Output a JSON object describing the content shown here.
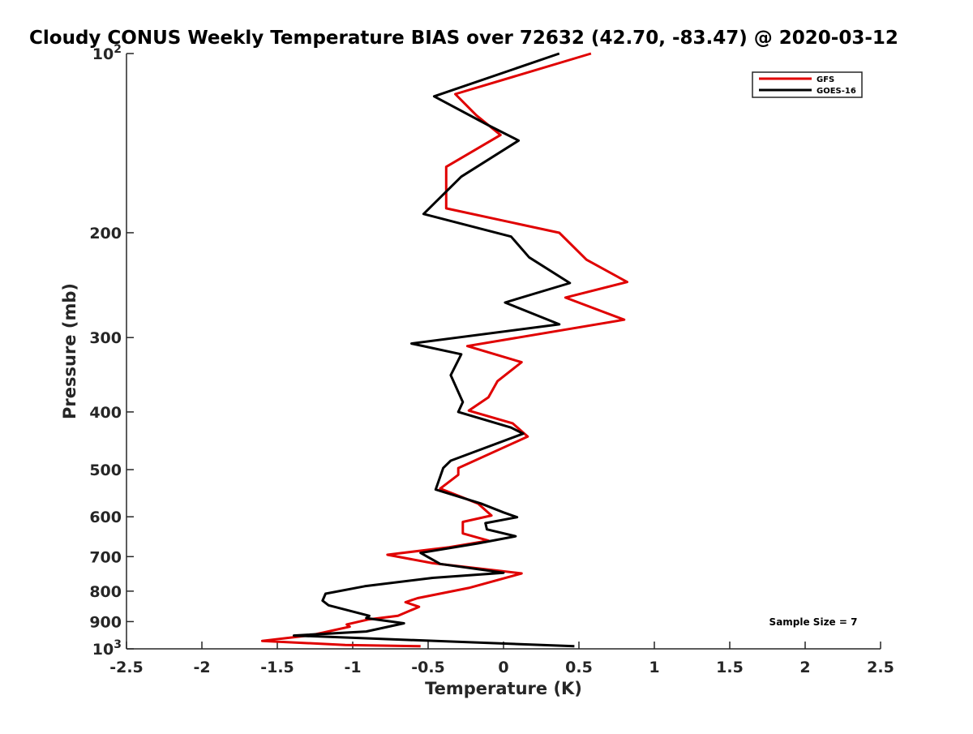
{
  "chart_data": {
    "type": "line",
    "title": "Cloudy CONUS Weekly Temperature BIAS over 72632 (42.70, -83.47) @ 2020-03-12",
    "xlabel": "Temperature (K)",
    "ylabel": "Pressure (mb)",
    "xlim": [
      -2.5,
      2.5
    ],
    "ylim": [
      1000,
      100
    ],
    "yscale": "log",
    "grid": false,
    "legend_position": "top-right",
    "x_ticks": [
      "-2.5",
      "-2",
      "-1.5",
      "-1",
      "-0.5",
      "0",
      "0.5",
      "1",
      "1.5",
      "2",
      "2.5"
    ],
    "y_ticks": [
      {
        "value": 100,
        "label": "10",
        "sup": "2"
      },
      {
        "value": 200,
        "label": "200",
        "sup": ""
      },
      {
        "value": 300,
        "label": "300",
        "sup": ""
      },
      {
        "value": 400,
        "label": "400",
        "sup": ""
      },
      {
        "value": 500,
        "label": "500",
        "sup": ""
      },
      {
        "value": 600,
        "label": "600",
        "sup": ""
      },
      {
        "value": 700,
        "label": "700",
        "sup": ""
      },
      {
        "value": 800,
        "label": "800",
        "sup": ""
      },
      {
        "value": 900,
        "label": "900",
        "sup": ""
      },
      {
        "value": 1000,
        "label": "10",
        "sup": "3"
      }
    ],
    "series": [
      {
        "name": "GFS",
        "color": "#e00000",
        "points": [
          [
            0.58,
            100
          ],
          [
            -0.32,
            117
          ],
          [
            -0.18,
            127
          ],
          [
            -0.02,
            137
          ],
          [
            -0.38,
            155
          ],
          [
            -0.38,
            182
          ],
          [
            0.37,
            200
          ],
          [
            0.55,
            222
          ],
          [
            0.82,
            242
          ],
          [
            0.41,
            257
          ],
          [
            0.8,
            280
          ],
          [
            -0.24,
            310
          ],
          [
            0.12,
            330
          ],
          [
            -0.04,
            355
          ],
          [
            -0.1,
            378
          ],
          [
            -0.23,
            398
          ],
          [
            0.06,
            418
          ],
          [
            0.16,
            440
          ],
          [
            -0.3,
            497
          ],
          [
            -0.3,
            510
          ],
          [
            -0.42,
            538
          ],
          [
            -0.17,
            570
          ],
          [
            -0.08,
            597
          ],
          [
            -0.27,
            612
          ],
          [
            -0.27,
            640
          ],
          [
            -0.1,
            658
          ],
          [
            -0.36,
            675
          ],
          [
            -0.77,
            695
          ],
          [
            -0.47,
            718
          ],
          [
            0.12,
            747
          ],
          [
            -0.23,
            790
          ],
          [
            -0.57,
            822
          ],
          [
            -0.65,
            835
          ],
          [
            -0.56,
            850
          ],
          [
            -0.7,
            880
          ],
          [
            -0.9,
            893
          ],
          [
            -1.04,
            910
          ],
          [
            -1.02,
            918
          ],
          [
            -1.27,
            948
          ],
          [
            -1.6,
            970
          ],
          [
            -1.05,
            985
          ],
          [
            -0.55,
            990
          ]
        ]
      },
      {
        "name": "GOES-16",
        "color": "#000000",
        "points": [
          [
            0.37,
            100
          ],
          [
            -0.46,
            118
          ],
          [
            -0.1,
            132
          ],
          [
            0.1,
            140
          ],
          [
            -0.28,
            161
          ],
          [
            -0.53,
            186
          ],
          [
            0.05,
            203
          ],
          [
            0.17,
            220
          ],
          [
            0.44,
            243
          ],
          [
            0.01,
            262
          ],
          [
            0.37,
            285
          ],
          [
            -0.61,
            307
          ],
          [
            -0.28,
            320
          ],
          [
            -0.35,
            347
          ],
          [
            -0.27,
            385
          ],
          [
            -0.3,
            400
          ],
          [
            0.05,
            425
          ],
          [
            0.13,
            435
          ],
          [
            -0.35,
            483
          ],
          [
            -0.4,
            497
          ],
          [
            -0.45,
            540
          ],
          [
            -0.15,
            570
          ],
          [
            0.0,
            590
          ],
          [
            0.09,
            601
          ],
          [
            -0.12,
            615
          ],
          [
            -0.11,
            630
          ],
          [
            0.08,
            647
          ],
          [
            -0.17,
            665
          ],
          [
            -0.55,
            690
          ],
          [
            -0.42,
            720
          ],
          [
            0.0,
            745
          ],
          [
            -0.47,
            760
          ],
          [
            -0.92,
            785
          ],
          [
            -1.18,
            808
          ],
          [
            -1.2,
            830
          ],
          [
            -1.16,
            845
          ],
          [
            -0.89,
            880
          ],
          [
            -0.91,
            888
          ],
          [
            -0.66,
            906
          ],
          [
            -0.91,
            935
          ],
          [
            -1.39,
            950
          ],
          [
            -0.45,
            970
          ],
          [
            0.47,
            990
          ]
        ]
      }
    ],
    "annotation": "Sample Size = 7"
  }
}
